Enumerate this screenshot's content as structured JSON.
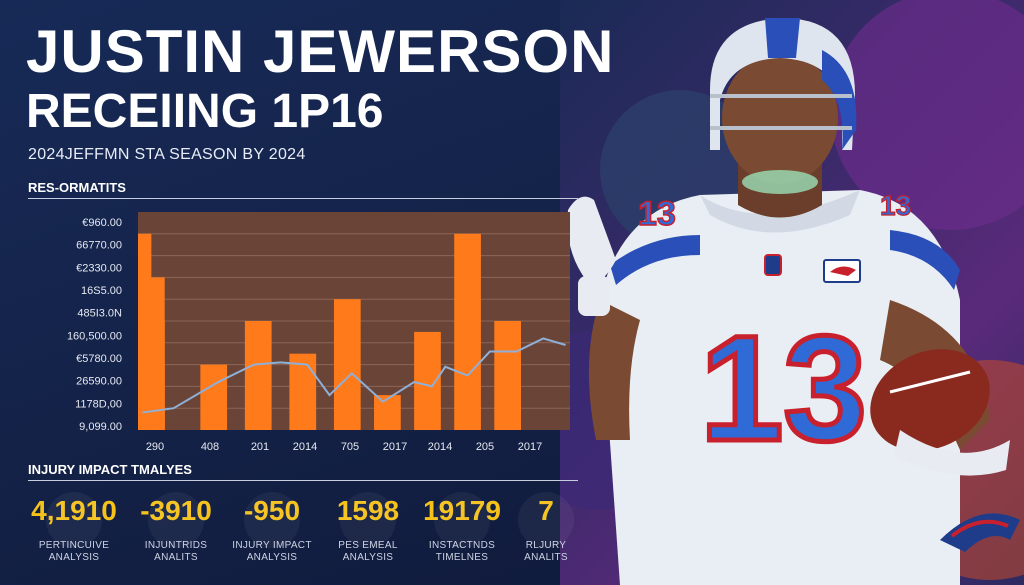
{
  "header": {
    "title": "JUSTIN JEWERSON",
    "subtitle": "RECEIING  1P16",
    "season_line": "2024JEFFMN STA SEASON BY 2024"
  },
  "chart_section": {
    "label": "RES-ORMATITS"
  },
  "chart_data": {
    "type": "bar",
    "title": "",
    "y_tick_labels": [
      "€960.00",
      "66770.00",
      "€2330.00",
      "16S5.00",
      "485I3.0N",
      "160,500.00",
      "€5780.00",
      "26590.00",
      "1178D,00",
      "9,099.00"
    ],
    "x_tick_labels": [
      "290",
      "408",
      "201",
      "2014",
      "705",
      "2017",
      "2014",
      "205",
      "2017"
    ],
    "bars": [
      {
        "x": 0.0,
        "w": 0.3,
        "value": 1
      },
      {
        "x": 0.0,
        "w": 0.3,
        "value": 3
      },
      {
        "x": 0.0,
        "w": 0.3,
        "value": 5
      },
      {
        "x": 0.0,
        "w": 0.15,
        "value": 9
      },
      {
        "x": 0.0,
        "w": 0.3,
        "value": 7
      },
      {
        "x": 0.7,
        "w": 0.3,
        "value": 3
      },
      {
        "x": 1.2,
        "w": 0.3,
        "value": 5
      },
      {
        "x": 1.7,
        "w": 0.3,
        "value": 3.5
      },
      {
        "x": 2.2,
        "w": 0.3,
        "value": 6
      },
      {
        "x": 2.65,
        "w": 0.3,
        "value": 1.6
      },
      {
        "x": 3.1,
        "w": 0.3,
        "value": 4.5
      },
      {
        "x": 3.55,
        "w": 0.3,
        "value": 9
      },
      {
        "x": 4.0,
        "w": 0.3,
        "value": 5
      }
    ],
    "line": [
      {
        "x": 0.05,
        "y": 0.8
      },
      {
        "x": 0.4,
        "y": 1.0
      },
      {
        "x": 0.9,
        "y": 2.2
      },
      {
        "x": 1.3,
        "y": 3.0
      },
      {
        "x": 1.6,
        "y": 3.1
      },
      {
        "x": 1.9,
        "y": 3.0
      },
      {
        "x": 2.15,
        "y": 1.6
      },
      {
        "x": 2.4,
        "y": 2.6
      },
      {
        "x": 2.75,
        "y": 1.3
      },
      {
        "x": 3.1,
        "y": 2.2
      },
      {
        "x": 3.3,
        "y": 2.0
      },
      {
        "x": 3.45,
        "y": 2.9
      },
      {
        "x": 3.7,
        "y": 2.5
      },
      {
        "x": 3.95,
        "y": 3.6
      },
      {
        "x": 4.25,
        "y": 3.6
      },
      {
        "x": 4.55,
        "y": 4.2
      },
      {
        "x": 4.8,
        "y": 3.9
      }
    ],
    "x_range": [
      0,
      4.85
    ],
    "y_range": [
      0,
      10
    ],
    "colors": {
      "bar": "#ff7a1a",
      "plot_bg": "#6a4436",
      "line": "#8fb0d8",
      "grid": "#9a7464"
    }
  },
  "injury_section": {
    "label": "INJURY IMPACT TMALYES"
  },
  "stats": [
    {
      "value": "4,1910",
      "label": "PERTINCUIVE\nANALYSIS"
    },
    {
      "value": "-3910",
      "label": "INJUNTRIDS\nANALITS"
    },
    {
      "value": "-950",
      "label": "INJURY IMPACT\nANALYSIS"
    },
    {
      "value": "1598",
      "label": "PES EMEAL\nANALYSIS"
    },
    {
      "value": "19179",
      "label": "INSTACTNDS\nTIMELNES"
    },
    {
      "value": "7",
      "label": "RLJURY\nANALITS"
    }
  ],
  "player": {
    "jersey_number": "13",
    "shoulder_number": "13",
    "helmet_icon": "football-helmet-icon",
    "ball_icon": "football-icon",
    "logo_icon": "team-logo-icon",
    "colors": {
      "jersey": "#e9edf4",
      "number_fill": "#2f6ad6",
      "number_outline": "#c8202c",
      "skin": "#7a4a32",
      "helmet": "#dfe5ee",
      "helmet_stripe": "#2a4fb8"
    }
  }
}
